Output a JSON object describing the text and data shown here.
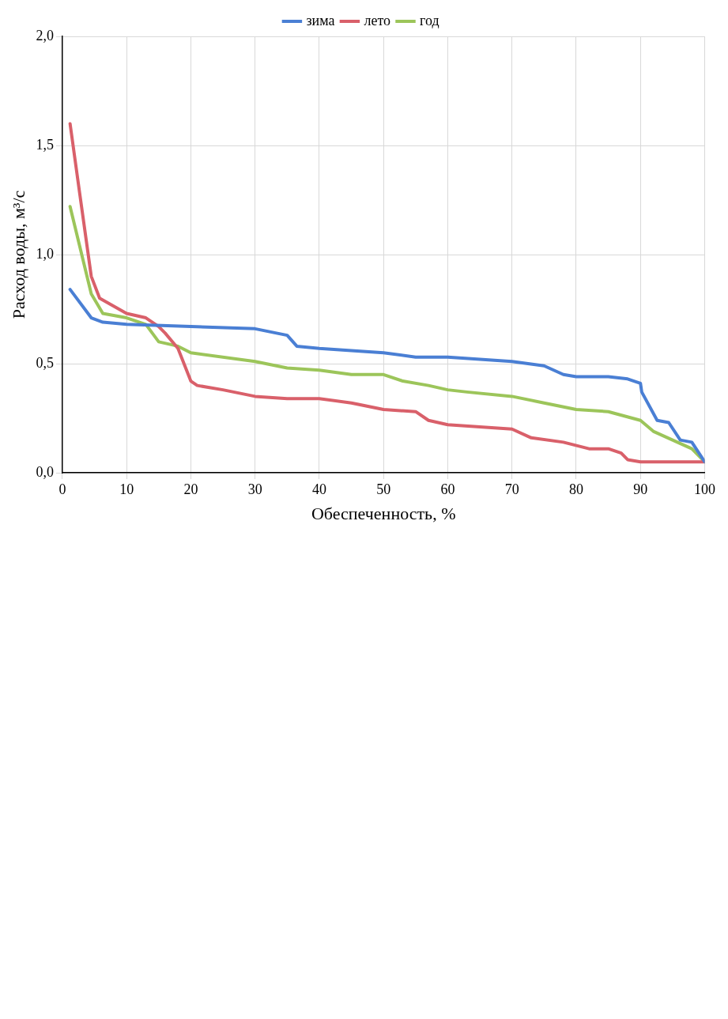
{
  "chart_data": {
    "type": "line",
    "xlabel": "Обеспеченность, %",
    "ylabel": "Расход воды, м³/с",
    "xlim": [
      0,
      100
    ],
    "xticks": [
      0,
      10,
      20,
      30,
      40,
      50,
      60,
      70,
      80,
      90,
      100
    ],
    "ylim": [
      0,
      2
    ],
    "yticks": [
      {
        "value": 0,
        "label": "0,0"
      },
      {
        "value": 0.5,
        "label": "0,5"
      },
      {
        "value": 1,
        "label": "1,0"
      },
      {
        "value": 1.5,
        "label": "1,5"
      },
      {
        "value": 2,
        "label": "2,0"
      }
    ],
    "grid": true,
    "legend": "top",
    "marker": "none",
    "line_style": "solid",
    "series": [
      {
        "name": "зима",
        "color": "#4a7fd4",
        "x": [
          1.2,
          4.5,
          6.3,
          10,
          20,
          30,
          35,
          36.5,
          40,
          50,
          55,
          60,
          70,
          75,
          78,
          80,
          85,
          88,
          90,
          90.2,
          92.6,
          94.4,
          96.2,
          98,
          100
        ],
        "values": [
          0.84,
          0.71,
          0.69,
          0.68,
          0.67,
          0.66,
          0.63,
          0.58,
          0.57,
          0.55,
          0.53,
          0.53,
          0.51,
          0.49,
          0.45,
          0.44,
          0.44,
          0.43,
          0.41,
          0.37,
          0.24,
          0.23,
          0.15,
          0.14,
          0.05
        ]
      },
      {
        "name": "лето",
        "color": "#d9606a",
        "x": [
          1.2,
          2.7,
          4.5,
          5.8,
          10,
          13,
          15,
          16,
          18,
          20,
          21,
          25,
          30,
          35,
          40,
          45,
          50,
          55,
          57,
          60,
          65,
          70,
          73,
          78,
          82,
          85,
          87,
          88,
          90,
          100
        ],
        "values": [
          1.6,
          1.28,
          0.9,
          0.8,
          0.73,
          0.71,
          0.67,
          0.64,
          0.57,
          0.42,
          0.4,
          0.38,
          0.35,
          0.34,
          0.34,
          0.32,
          0.29,
          0.28,
          0.24,
          0.22,
          0.21,
          0.2,
          0.16,
          0.14,
          0.11,
          0.11,
          0.09,
          0.06,
          0.05,
          0.05
        ]
      },
      {
        "name": "год",
        "color": "#9cc55a",
        "x": [
          1.2,
          4.5,
          6.3,
          10,
          13,
          15,
          18,
          20,
          30,
          35,
          40,
          45,
          50,
          53,
          57,
          60,
          63,
          70,
          75,
          80,
          85,
          90,
          92,
          95,
          98,
          100
        ],
        "values": [
          1.22,
          0.82,
          0.73,
          0.71,
          0.68,
          0.6,
          0.58,
          0.55,
          0.51,
          0.48,
          0.47,
          0.45,
          0.45,
          0.42,
          0.4,
          0.38,
          0.37,
          0.35,
          0.32,
          0.29,
          0.28,
          0.24,
          0.19,
          0.15,
          0.11,
          0.05
        ]
      }
    ]
  }
}
